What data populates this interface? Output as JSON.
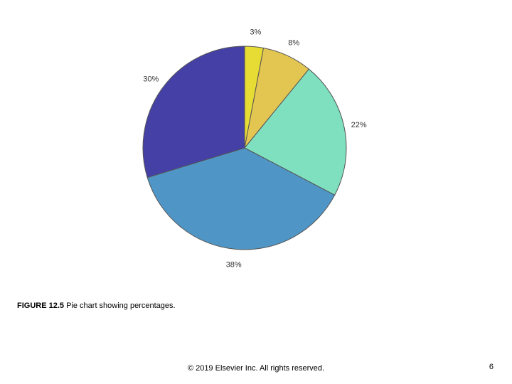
{
  "chart_data": {
    "type": "pie",
    "values": [
      3,
      8,
      22,
      38,
      30
    ],
    "labels": [
      "3%",
      "8%",
      "22%",
      "38%",
      "30%"
    ],
    "colors": [
      "#e7dc34",
      "#e3c552",
      "#7fe0bf",
      "#4f96c6",
      "#4540a5"
    ],
    "start_angle": "top, clockwise"
  },
  "caption": {
    "figure_number": "FIGURE 12.5",
    "text": "Pie chart showing percentages."
  },
  "footer": {
    "copyright": "© 2019 Elsevier Inc. All rights reserved.",
    "page_number": "6"
  }
}
